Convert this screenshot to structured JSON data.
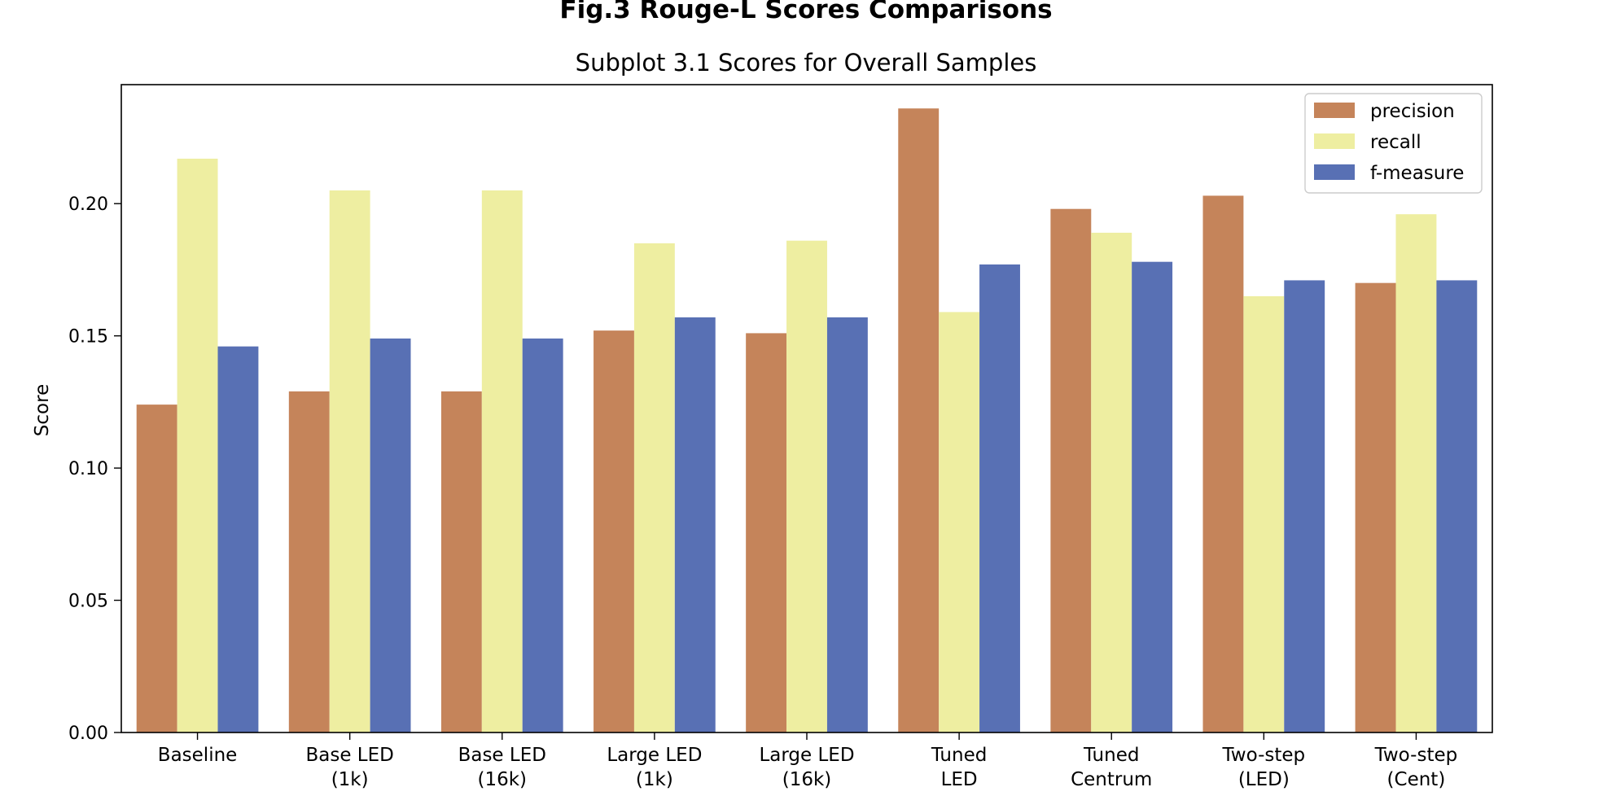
{
  "figure_title": "Fig.3 Rouge-L Scores Comparisons",
  "chart_data": {
    "type": "bar",
    "title": "Subplot 3.1 Scores for Overall Samples",
    "xlabel": "",
    "ylabel": "Score",
    "ylim": [
      0,
      0.245
    ],
    "yticks": [
      0.0,
      0.05,
      0.1,
      0.15,
      0.2
    ],
    "ytick_labels": [
      "0.00",
      "0.05",
      "0.10",
      "0.15",
      "0.20"
    ],
    "categories": [
      [
        "Baseline"
      ],
      [
        "Base LED",
        "(1k)"
      ],
      [
        "Base LED",
        "(16k)"
      ],
      [
        "Large LED",
        "(1k)"
      ],
      [
        "Large LED",
        "(16k)"
      ],
      [
        "Tuned",
        "LED"
      ],
      [
        "Tuned",
        "Centrum"
      ],
      [
        "Two-step",
        "(LED)"
      ],
      [
        "Two-step",
        "(Cent)"
      ]
    ],
    "series": [
      {
        "name": "precision",
        "color": "#c5845a",
        "values": [
          0.124,
          0.129,
          0.129,
          0.152,
          0.151,
          0.236,
          0.198,
          0.203,
          0.17
        ]
      },
      {
        "name": "recall",
        "color": "#eeeea1",
        "values": [
          0.217,
          0.205,
          0.205,
          0.185,
          0.186,
          0.159,
          0.189,
          0.165,
          0.196
        ]
      },
      {
        "name": "f-measure",
        "color": "#5870b4",
        "values": [
          0.146,
          0.149,
          0.149,
          0.157,
          0.157,
          0.177,
          0.178,
          0.171,
          0.171
        ]
      }
    ],
    "grid": false,
    "legend_position": "top-right"
  }
}
